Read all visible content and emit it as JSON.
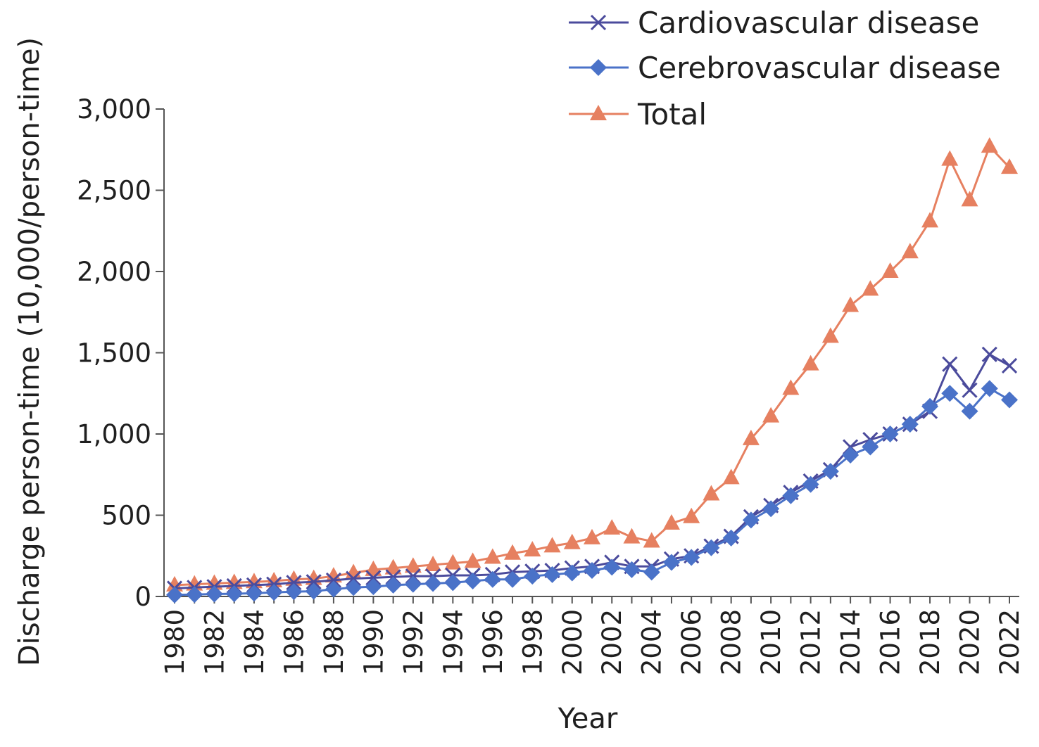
{
  "chart_data": {
    "type": "line",
    "title": "",
    "xlabel": "Year",
    "ylabel": "Discharge person-time (10,000/person-time)",
    "ylim": [
      0,
      3000
    ],
    "yticks": [
      "0",
      "500",
      "1,000",
      "1,500",
      "2,000",
      "2,500",
      "3,000"
    ],
    "ytick_values": [
      0,
      500,
      1000,
      1500,
      2000,
      2500,
      3000
    ],
    "xticks": [
      "1980",
      "1982",
      "1984",
      "1986",
      "1988",
      "1990",
      "1992",
      "1994",
      "1996",
      "1998",
      "2000",
      "2002",
      "2004",
      "2006",
      "2008",
      "2010",
      "2012",
      "2014",
      "2016",
      "2018",
      "2020",
      "2022"
    ],
    "x": [
      1980,
      1981,
      1982,
      1983,
      1984,
      1985,
      1986,
      1987,
      1988,
      1989,
      1990,
      1991,
      1992,
      1993,
      1994,
      1995,
      1996,
      1997,
      1998,
      1999,
      2000,
      2001,
      2002,
      2003,
      2004,
      2005,
      2006,
      2007,
      2008,
      2009,
      2010,
      2011,
      2012,
      2013,
      2014,
      2015,
      2016,
      2017,
      2018,
      2019,
      2020,
      2021,
      2022
    ],
    "grid": false,
    "legend_position": "top-right",
    "series": [
      {
        "name": "Cardiovascular disease",
        "color": "#4b4b9c",
        "marker": "x",
        "values": [
          50,
          55,
          60,
          65,
          70,
          75,
          85,
          90,
          100,
          110,
          115,
          120,
          125,
          125,
          130,
          130,
          135,
          150,
          155,
          160,
          175,
          185,
          210,
          185,
          185,
          230,
          250,
          310,
          370,
          490,
          560,
          640,
          710,
          780,
          920,
          965,
          1000,
          1060,
          1140,
          1430,
          1270,
          1490,
          1420
        ]
      },
      {
        "name": "Cerebrovascular disease",
        "color": "#4a72c8",
        "marker": "diamond",
        "values": [
          10,
          12,
          15,
          17,
          20,
          25,
          30,
          32,
          45,
          55,
          60,
          70,
          75,
          80,
          85,
          95,
          105,
          105,
          125,
          135,
          145,
          160,
          180,
          165,
          150,
          210,
          240,
          300,
          360,
          470,
          540,
          620,
          690,
          770,
          870,
          920,
          1000,
          1060,
          1170,
          1250,
          1140,
          1280,
          1210
        ]
      },
      {
        "name": "Total",
        "color": "#e68060",
        "marker": "triangle",
        "values": [
          70,
          75,
          80,
          85,
          90,
          95,
          105,
          110,
          125,
          145,
          165,
          175,
          185,
          195,
          205,
          215,
          240,
          265,
          285,
          310,
          330,
          360,
          420,
          365,
          340,
          450,
          490,
          630,
          730,
          970,
          1110,
          1280,
          1430,
          1600,
          1790,
          1890,
          2000,
          2120,
          2310,
          2690,
          2440,
          2770,
          2640
        ]
      }
    ]
  }
}
